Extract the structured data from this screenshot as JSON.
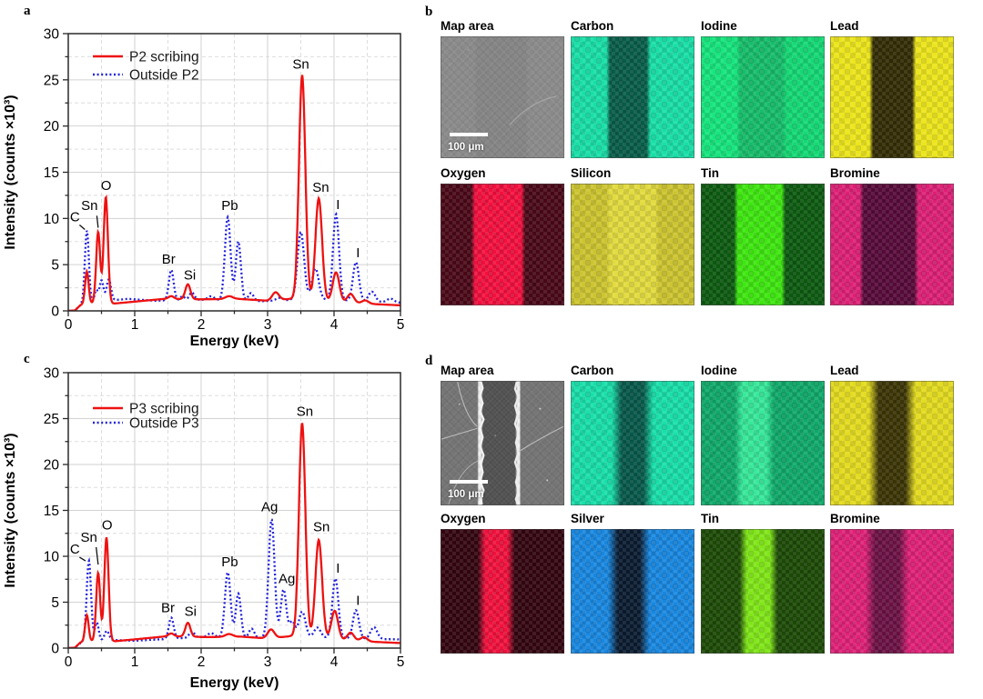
{
  "figure": {
    "panel_labels": {
      "a": "a",
      "b": "b",
      "c": "c",
      "d": "d"
    }
  },
  "chart_data": [
    {
      "id": "a",
      "type": "line",
      "title": "",
      "xlabel": "Energy (keV)",
      "ylabel": "Intensity (counts ×10³)",
      "xlim": [
        0,
        5
      ],
      "ylim": [
        0,
        30
      ],
      "xticks": [
        0,
        1,
        2,
        3,
        4,
        5
      ],
      "yticks": [
        0,
        5,
        10,
        15,
        20,
        25,
        30
      ],
      "xminor": [
        0.5,
        1.5,
        2.5,
        3.5,
        4.5
      ],
      "yminor": [
        2.5,
        7.5,
        12.5,
        17.5,
        22.5,
        27.5
      ],
      "grid": "major-solid-minor-dashed",
      "legend_position": "top-left",
      "series": [
        {
          "name": "P2 scribing",
          "color": "#ee1111",
          "dash": "solid",
          "baseline": [
            [
              0,
              0
            ],
            [
              0.1,
              0.05
            ],
            [
              0.18,
              0.6
            ],
            [
              0.25,
              0.85
            ],
            [
              0.7,
              0.8
            ],
            [
              1.0,
              1.0
            ],
            [
              1.45,
              1.3
            ],
            [
              2.0,
              1.25
            ],
            [
              2.55,
              1.3
            ],
            [
              3.0,
              1.1
            ],
            [
              3.35,
              1.3
            ],
            [
              3.95,
              1.0
            ],
            [
              4.2,
              0.9
            ],
            [
              4.55,
              0.75
            ],
            [
              5,
              0.6
            ]
          ],
          "peaks": [
            [
              0.28,
              3.4,
              0.026
            ],
            [
              0.45,
              7.7,
              0.03
            ],
            [
              0.565,
              11.5,
              0.032
            ],
            [
              1.55,
              0.3,
              0.04
            ],
            [
              1.8,
              1.6,
              0.038
            ],
            [
              2.42,
              0.3,
              0.055
            ],
            [
              3.12,
              0.85,
              0.05
            ],
            [
              3.52,
              24.3,
              0.048
            ],
            [
              3.77,
              11.1,
              0.05
            ],
            [
              4.03,
              3.2,
              0.05
            ],
            [
              4.25,
              0.95,
              0.05
            ],
            [
              4.47,
              0.35,
              0.05
            ]
          ]
        },
        {
          "name": "Outside P2",
          "color": "#2222dd",
          "dash": "dotted",
          "baseline": [
            [
              0,
              0
            ],
            [
              0.1,
              0.05
            ],
            [
              0.2,
              0.7
            ],
            [
              0.6,
              1.1
            ],
            [
              0.9,
              1.3
            ],
            [
              1.3,
              1.1
            ],
            [
              2.0,
              1.2
            ],
            [
              2.9,
              1.05
            ],
            [
              3.3,
              1.15
            ],
            [
              3.65,
              1.3
            ],
            [
              4.5,
              1.0
            ],
            [
              5,
              0.9
            ]
          ],
          "peaks": [
            [
              0.28,
              7.9,
              0.03
            ],
            [
              0.42,
              1.3,
              0.025
            ],
            [
              0.5,
              2.3,
              0.03
            ],
            [
              0.61,
              2.3,
              0.033
            ],
            [
              1.55,
              3.3,
              0.036
            ],
            [
              1.72,
              0.45,
              0.03
            ],
            [
              1.86,
              0.8,
              0.038
            ],
            [
              2.15,
              0.4,
              0.05
            ],
            [
              2.4,
              9.0,
              0.042
            ],
            [
              2.56,
              6.4,
              0.038
            ],
            [
              2.75,
              0.85,
              0.04
            ],
            [
              3.18,
              0.3,
              0.05
            ],
            [
              3.5,
              7.3,
              0.05
            ],
            [
              3.72,
              3.3,
              0.05
            ],
            [
              4.03,
              9.3,
              0.045
            ],
            [
              4.33,
              4.2,
              0.045
            ],
            [
              4.57,
              1.1,
              0.05
            ],
            [
              4.85,
              0.4,
              0.05
            ]
          ]
        }
      ],
      "annotations": [
        {
          "text": "C",
          "x": 0.1,
          "y": 9.7,
          "line": [
            0.17,
            9.3,
            0.25,
            8.8
          ]
        },
        {
          "text": "Sn",
          "x": 0.32,
          "y": 10.9,
          "line": [
            0.43,
            10.3,
            0.45,
            9.0
          ]
        },
        {
          "text": "O",
          "x": 0.57,
          "y": 13.1
        },
        {
          "text": "Br",
          "x": 1.51,
          "y": 5.1
        },
        {
          "text": "Si",
          "x": 1.83,
          "y": 3.4
        },
        {
          "text": "Pb",
          "x": 2.43,
          "y": 10.9
        },
        {
          "text": "Sn",
          "x": 3.5,
          "y": 26.2
        },
        {
          "text": "Sn",
          "x": 3.8,
          "y": 12.9
        },
        {
          "text": "I",
          "x": 4.06,
          "y": 11.0
        },
        {
          "text": "I",
          "x": 4.36,
          "y": 5.8
        }
      ]
    },
    {
      "id": "c",
      "type": "line",
      "title": "",
      "xlabel": "Energy (keV)",
      "ylabel": "Intensity (counts ×10³)",
      "xlim": [
        0,
        5
      ],
      "ylim": [
        0,
        30
      ],
      "xticks": [
        0,
        1,
        2,
        3,
        4,
        5
      ],
      "yticks": [
        0,
        5,
        10,
        15,
        20,
        25,
        30
      ],
      "xminor": [
        0.5,
        1.5,
        2.5,
        3.5,
        4.5
      ],
      "yminor": [
        2.5,
        7.5,
        12.5,
        17.5,
        22.5,
        27.5
      ],
      "grid": "major-solid-minor-dashed",
      "legend_position": "top-left",
      "series": [
        {
          "name": "P3 scribing",
          "color": "#ee1111",
          "dash": "solid",
          "baseline": [
            [
              0,
              0
            ],
            [
              0.1,
              0.05
            ],
            [
              0.18,
              0.6
            ],
            [
              0.25,
              0.8
            ],
            [
              0.7,
              0.75
            ],
            [
              1.0,
              0.95
            ],
            [
              1.5,
              1.3
            ],
            [
              2.1,
              1.2
            ],
            [
              2.6,
              1.25
            ],
            [
              3.0,
              1.05
            ],
            [
              3.35,
              1.3
            ],
            [
              3.95,
              1.0
            ],
            [
              4.2,
              0.85
            ],
            [
              4.55,
              0.7
            ],
            [
              5,
              0.55
            ]
          ],
          "peaks": [
            [
              0.28,
              2.8,
              0.026
            ],
            [
              0.45,
              7.4,
              0.03
            ],
            [
              0.575,
              11.3,
              0.032
            ],
            [
              1.55,
              0.3,
              0.04
            ],
            [
              1.8,
              1.5,
              0.038
            ],
            [
              2.42,
              0.3,
              0.055
            ],
            [
              3.05,
              0.95,
              0.05
            ],
            [
              3.52,
              23.3,
              0.048
            ],
            [
              3.77,
              10.7,
              0.05
            ],
            [
              4.01,
              3.1,
              0.05
            ],
            [
              4.25,
              0.85,
              0.05
            ],
            [
              4.45,
              0.45,
              0.05
            ]
          ]
        },
        {
          "name": "Outside P3",
          "color": "#2222dd",
          "dash": "dotted",
          "baseline": [
            [
              0,
              0
            ],
            [
              0.1,
              0.05
            ],
            [
              0.2,
              0.65
            ],
            [
              0.6,
              0.9
            ],
            [
              1.0,
              0.8
            ],
            [
              1.5,
              1.0
            ],
            [
              2.0,
              1.2
            ],
            [
              2.9,
              1.1
            ],
            [
              3.4,
              1.2
            ],
            [
              4.5,
              1.0
            ],
            [
              5,
              0.95
            ]
          ],
          "peaks": [
            [
              0.31,
              8.8,
              0.033
            ],
            [
              0.43,
              2.0,
              0.028
            ],
            [
              0.58,
              1.0,
              0.033
            ],
            [
              1.55,
              2.3,
              0.036
            ],
            [
              1.86,
              0.7,
              0.038
            ],
            [
              2.15,
              0.45,
              0.05
            ],
            [
              2.4,
              7.1,
              0.042
            ],
            [
              2.56,
              4.8,
              0.038
            ],
            [
              2.76,
              1.0,
              0.04
            ],
            [
              3.06,
              12.9,
              0.045
            ],
            [
              3.24,
              5.2,
              0.042
            ],
            [
              3.37,
              1.7,
              0.04
            ],
            [
              3.52,
              2.8,
              0.05
            ],
            [
              3.75,
              1.1,
              0.05
            ],
            [
              4.02,
              6.5,
              0.045
            ],
            [
              4.33,
              3.1,
              0.045
            ],
            [
              4.6,
              1.3,
              0.05
            ]
          ]
        }
      ],
      "annotations": [
        {
          "text": "C",
          "x": 0.1,
          "y": 10.3,
          "line": [
            0.17,
            9.9,
            0.26,
            9.5
          ]
        },
        {
          "text": "Sn",
          "x": 0.31,
          "y": 11.6,
          "line": [
            0.42,
            11.0,
            0.45,
            9.1
          ]
        },
        {
          "text": "O",
          "x": 0.585,
          "y": 12.9
        },
        {
          "text": "Br",
          "x": 1.5,
          "y": 3.9
        },
        {
          "text": "Si",
          "x": 1.84,
          "y": 3.5
        },
        {
          "text": "Pb",
          "x": 2.43,
          "y": 8.9
        },
        {
          "text": "Ag",
          "x": 3.03,
          "y": 14.9
        },
        {
          "text": "Ag",
          "x": 3.29,
          "y": 7.1
        },
        {
          "text": "Sn",
          "x": 3.56,
          "y": 25.3
        },
        {
          "text": "Sn",
          "x": 3.81,
          "y": 12.7
        },
        {
          "text": "I",
          "x": 4.06,
          "y": 8.2
        },
        {
          "text": "I",
          "x": 4.36,
          "y": 4.7
        }
      ]
    }
  ],
  "map_panels": [
    {
      "id": "b",
      "tiles": [
        {
          "label": "Map area",
          "kind": "sem",
          "outer": "#8c8c8c",
          "center": "#868686",
          "band": [
            28,
            70
          ],
          "scalebar": "100 μm"
        },
        {
          "label": "Carbon",
          "outer": "#17dfa6",
          "center": "#085c49",
          "band": [
            30,
            63
          ]
        },
        {
          "label": "Iodine",
          "outer": "#14e57c",
          "center": "#15bd69",
          "right": "#13d974",
          "band": [
            30,
            68
          ]
        },
        {
          "label": "Lead",
          "outer": "#ece51a",
          "center": "#332d05",
          "band": [
            33,
            68
          ]
        },
        {
          "label": "Oxygen",
          "outer": "#4a0817",
          "center": "#f40f3e",
          "band": [
            26,
            67
          ]
        },
        {
          "label": "Silicon",
          "outer": "#ccc42e",
          "center": "#e2db3d",
          "band": [
            30,
            70
          ]
        },
        {
          "label": "Tin",
          "outer": "#0c5a10",
          "center": "#3de70e",
          "band": [
            28,
            67
          ]
        },
        {
          "label": "Bromine",
          "outer": "#de1f76",
          "center": "#570a39",
          "band": [
            25,
            70
          ]
        }
      ]
    },
    {
      "id": "d",
      "tiles": [
        {
          "label": "Map area",
          "kind": "sem",
          "outer": "#757575",
          "center": "#525252",
          "band": [
            31.5,
            63
          ],
          "edge": "#f0f0f0",
          "scalebar": "100 μm"
        },
        {
          "label": "Carbon",
          "outer": "#17dfa9",
          "center": "#07584a",
          "band": [
            37,
            63
          ],
          "soft": 4
        },
        {
          "label": "Iodine",
          "outer": "#0fa96a",
          "center": "#35e899",
          "band": [
            30,
            56
          ],
          "soft": 3
        },
        {
          "label": "Lead",
          "outer": "#e3db1e",
          "center": "#3b3405",
          "band": [
            35,
            65
          ],
          "soft": 4
        },
        {
          "label": "Oxygen",
          "outer": "#330510",
          "center": "#f2103c",
          "band": [
            33,
            57
          ],
          "soft": 3
        },
        {
          "label": "Silver",
          "outer": "#1787e0",
          "center": "#0a1b30",
          "band": [
            34,
            60
          ],
          "soft": 4
        },
        {
          "label": "Tin",
          "outer": "#1c4a06",
          "center": "#7fe616",
          "band": [
            34,
            59
          ],
          "soft": 3
        },
        {
          "label": "Bromine",
          "outer": "#e02077",
          "center": "#6b1144",
          "band": [
            32,
            60
          ],
          "soft": 4
        }
      ]
    }
  ]
}
